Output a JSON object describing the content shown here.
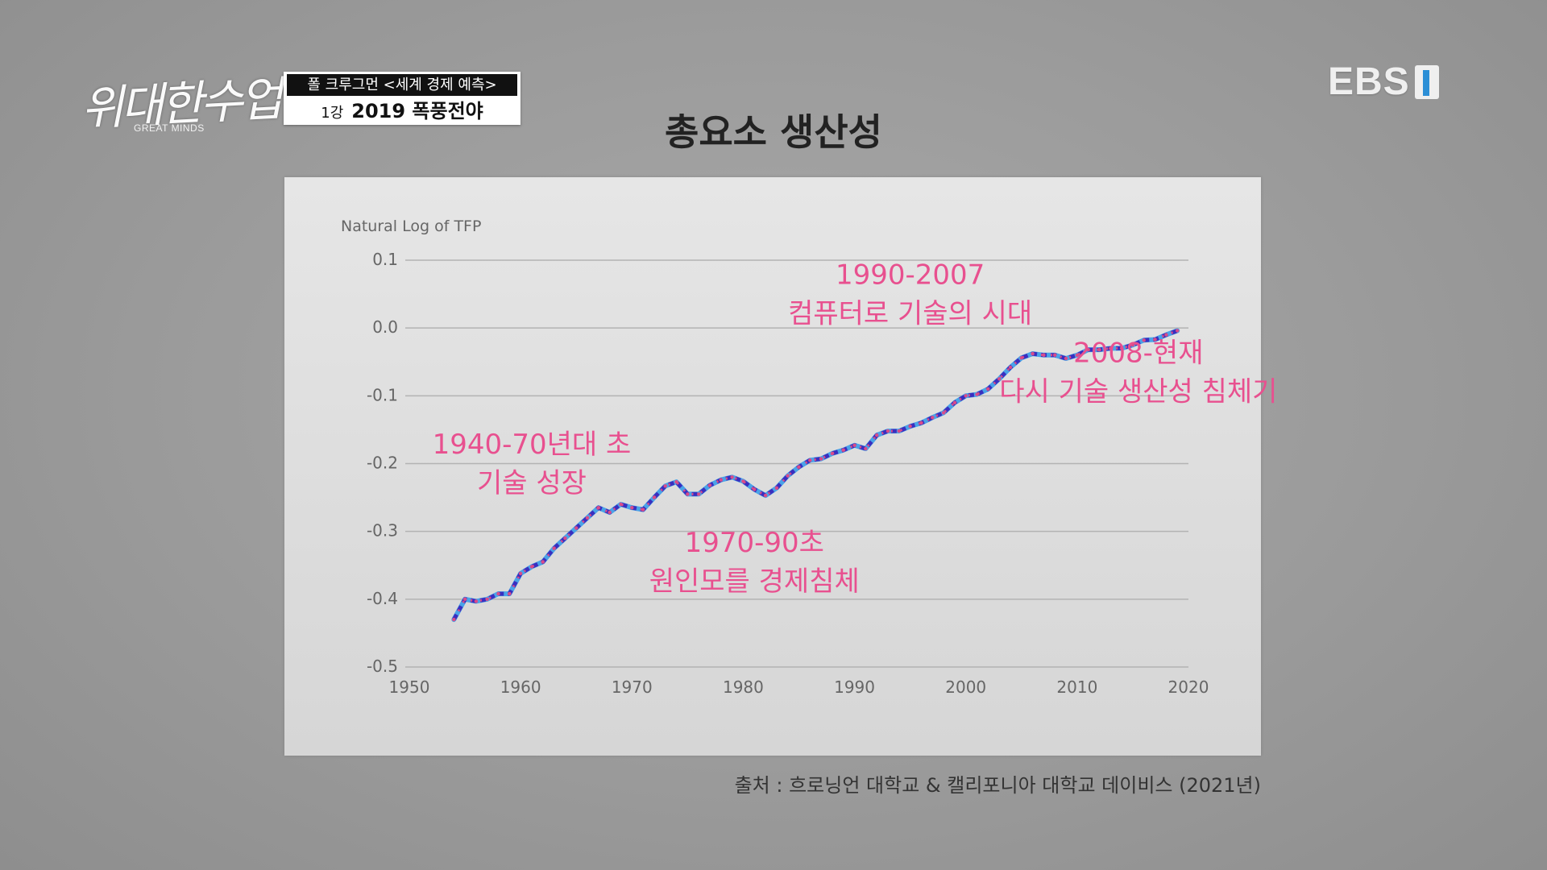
{
  "branding": {
    "show_logo_script": "위대한수업",
    "show_logo_sub": "GREAT MINDS",
    "program_top": "폴 크루그먼 <세계 경제 예측>",
    "episode": "1강",
    "episode_title": "2019 폭풍전야",
    "channel": "EBS",
    "channel_accent": "#2c8fd6"
  },
  "title": "총요소 생산성",
  "source": "출처 : 흐로닝언 대학교 & 캘리포니아 대학교 데이비스 (2021년)",
  "colors": {
    "annotation": "#e8508f",
    "line_blue": "#4aa3e8",
    "line_purple": "#3a2fbf",
    "line_dots": "#d94c8a"
  },
  "chart_data": {
    "type": "line",
    "ylabel": "Natural Log of TFP",
    "xlim": [
      1950,
      2020
    ],
    "ylim": [
      -0.5,
      0.1
    ],
    "x_ticks": [
      "1950",
      "1960",
      "1970",
      "1980",
      "1990",
      "2000",
      "2010",
      "2020"
    ],
    "y_ticks": [
      "0.1",
      "0.0",
      "-0.1",
      "-0.2",
      "-0.3",
      "-0.4",
      "-0.5"
    ],
    "grid": true,
    "series": [
      {
        "x": [
          1954,
          1955,
          1956,
          1957,
          1958,
          1959,
          1960,
          1961,
          1962,
          1963,
          1964,
          1965,
          1966,
          1967,
          1968,
          1969,
          1970,
          1971,
          1972,
          1973,
          1974,
          1975,
          1976,
          1977,
          1978,
          1979,
          1980,
          1981,
          1982,
          1983,
          1984,
          1985,
          1986,
          1987,
          1988,
          1989,
          1990,
          1991,
          1992,
          1993,
          1994,
          1995,
          1996,
          1997,
          1998,
          1999,
          2000,
          2001,
          2002,
          2003,
          2004,
          2005,
          2006,
          2007,
          2008,
          2009,
          2010,
          2011,
          2012,
          2013,
          2014,
          2015,
          2016,
          2017,
          2018,
          2019
        ],
        "y": [
          -0.43,
          -0.4,
          -0.403,
          -0.4,
          -0.392,
          -0.392,
          -0.362,
          -0.352,
          -0.345,
          -0.325,
          -0.31,
          -0.295,
          -0.28,
          -0.265,
          -0.272,
          -0.26,
          -0.265,
          -0.268,
          -0.25,
          -0.233,
          -0.227,
          -0.245,
          -0.245,
          -0.232,
          -0.224,
          -0.22,
          -0.226,
          -0.238,
          -0.247,
          -0.236,
          -0.218,
          -0.205,
          -0.195,
          -0.193,
          -0.185,
          -0.18,
          -0.173,
          -0.178,
          -0.158,
          -0.152,
          -0.152,
          -0.145,
          -0.14,
          -0.132,
          -0.125,
          -0.11,
          -0.1,
          -0.098,
          -0.09,
          -0.075,
          -0.058,
          -0.044,
          -0.038,
          -0.04,
          -0.04,
          -0.045,
          -0.04,
          -0.032,
          -0.032,
          -0.03,
          -0.03,
          -0.025,
          -0.018,
          -0.017,
          -0.01,
          -0.004
        ]
      }
    ],
    "annotations": [
      {
        "lines": [
          "1940-70년대 초",
          "기술 성장"
        ],
        "at": [
          1961,
          -0.185
        ],
        "align": "middle"
      },
      {
        "lines": [
          "1970-90초",
          "원인모를 경제침체"
        ],
        "at": [
          1981,
          -0.33
        ],
        "align": "middle"
      },
      {
        "lines": [
          "1990-2007",
          "컴퓨터로 기술의 시대"
        ],
        "at": [
          1995,
          0.065
        ],
        "align": "middle"
      },
      {
        "lines": [
          "2008-현재",
          "다시 기술 생산성 침체기"
        ],
        "at": [
          2015.5,
          -0.05
        ],
        "align": "middle"
      }
    ]
  }
}
